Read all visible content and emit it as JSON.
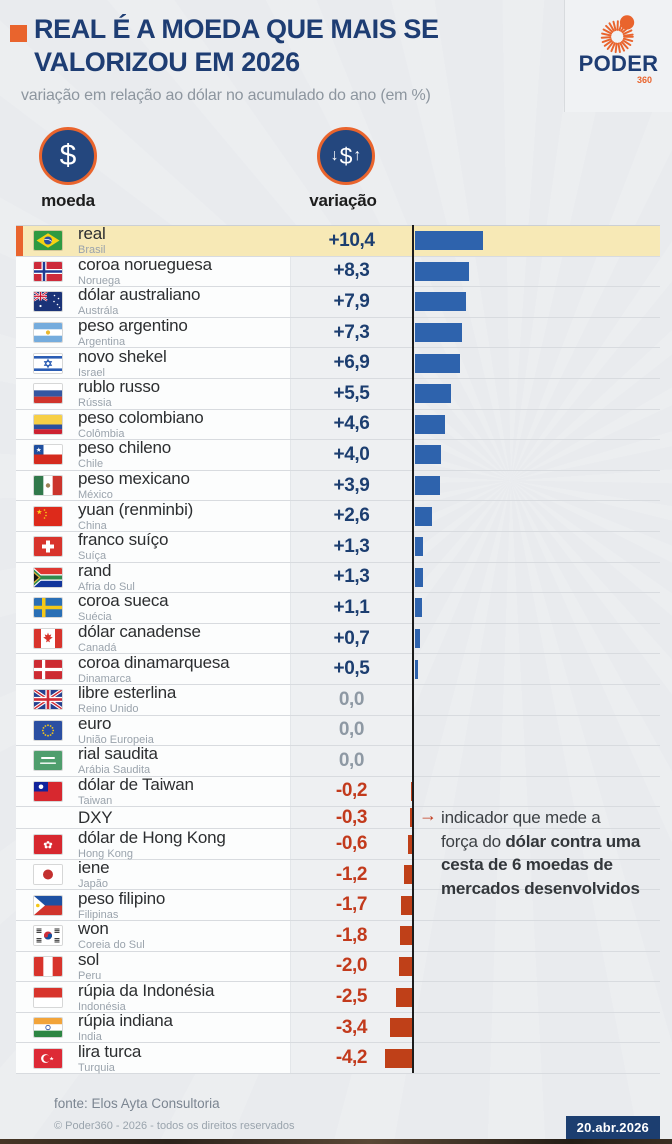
{
  "header": {
    "title_line1": "REAL É A MOEDA QUE MAIS SE",
    "title_line2": "VALORIZOU EM 2026",
    "subtitle": "variação em relação ao dólar no acumulado do ano (em %)",
    "logo_text": "PODER",
    "logo_sub": "360"
  },
  "columns": {
    "moeda_label": "moeda",
    "moeda_icon_glyph": "$",
    "variacao_label": "variação",
    "variacao_icon_down": "↓",
    "variacao_icon_dollar": "$",
    "variacao_icon_up": "↑"
  },
  "annotation": {
    "arrow_glyph": "→",
    "text_regular": "indicador que mede a força do ",
    "text_bold": "dólar contra uma cesta de 6 moedas de mercados desenvolvidos"
  },
  "footer": {
    "source": "fonte: Elos Ayta Consultoria",
    "copyright": "© Poder360 - 2026 - todos os direitos reservados",
    "date_badge": "20.abr.2026"
  },
  "colors": {
    "accent_orange": "#e9642d",
    "title_blue": "#1e3d73",
    "bar_positive": "#2e63ad",
    "bar_negative": "#bf4018",
    "value_positive": "#1c3e70",
    "value_zero": "#8e99a4",
    "value_negative": "#c23a1c",
    "highlight_row": "#f7e9b6",
    "date_badge_bg": "#1c3e70"
  },
  "chart_data": {
    "type": "bar",
    "orientation": "horizontal",
    "title": "REAL É A MOEDA QUE MAIS SE VALORIZOU EM 2026",
    "value_axis_note": "variação em relação ao dólar no acumulado do ano (em %)",
    "unit": "%",
    "xlim": [
      -4.2,
      10.4
    ],
    "rows": [
      {
        "currency": "real",
        "country": "Brasil",
        "label": "+10,4",
        "value": 10.4,
        "flag": "brazil",
        "highlight": true
      },
      {
        "currency": "coroa norueguesa",
        "country": "Noruega",
        "label": "+8,3",
        "value": 8.3,
        "flag": "norway",
        "highlight": false
      },
      {
        "currency": "dólar australiano",
        "country": "Austrála",
        "label": "+7,9",
        "value": 7.9,
        "flag": "australia",
        "highlight": false
      },
      {
        "currency": "peso argentino",
        "country": "Argentina",
        "label": "+7,3",
        "value": 7.3,
        "flag": "argentina",
        "highlight": false
      },
      {
        "currency": "novo shekel",
        "country": "Israel",
        "label": "+6,9",
        "value": 6.9,
        "flag": "israel",
        "highlight": false
      },
      {
        "currency": "rublo russo",
        "country": "Rússia",
        "label": "+5,5",
        "value": 5.5,
        "flag": "russia",
        "highlight": false
      },
      {
        "currency": "peso colombiano",
        "country": "Colômbia",
        "label": "+4,6",
        "value": 4.6,
        "flag": "colombia",
        "highlight": false
      },
      {
        "currency": "peso chileno",
        "country": "Chile",
        "label": "+4,0",
        "value": 4.0,
        "flag": "chile",
        "highlight": false
      },
      {
        "currency": "peso mexicano",
        "country": "México",
        "label": "+3,9",
        "value": 3.9,
        "flag": "mexico",
        "highlight": false
      },
      {
        "currency": "yuan (renminbi)",
        "country": "China",
        "label": "+2,6",
        "value": 2.6,
        "flag": "china",
        "highlight": false
      },
      {
        "currency": "franco suíço",
        "country": "Suíça",
        "label": "+1,3",
        "value": 1.3,
        "flag": "switzerland",
        "highlight": false
      },
      {
        "currency": "rand",
        "country": "Afria do Sul",
        "label": "+1,3",
        "value": 1.3,
        "flag": "south-africa",
        "highlight": false
      },
      {
        "currency": "coroa sueca",
        "country": "Suécia",
        "label": "+1,1",
        "value": 1.1,
        "flag": "sweden",
        "highlight": false
      },
      {
        "currency": "dólar canadense",
        "country": "Canadá",
        "label": "+0,7",
        "value": 0.7,
        "flag": "canada",
        "highlight": false
      },
      {
        "currency": "coroa dinamarquesa",
        "country": "Dinamarca",
        "label": "+0,5",
        "value": 0.5,
        "flag": "denmark",
        "highlight": false
      },
      {
        "currency": "libre esterlina",
        "country": "Reino Unido",
        "label": "0,0",
        "value": 0,
        "flag": "uk",
        "highlight": false
      },
      {
        "currency": "euro",
        "country": "União Europeia",
        "label": "0,0",
        "value": 0,
        "flag": "eu",
        "highlight": false
      },
      {
        "currency": "rial saudita",
        "country": "Arábia Saudita",
        "label": "0,0",
        "value": 0,
        "flag": "saudi-arabia",
        "highlight": false
      },
      {
        "currency": "dólar de Taiwan",
        "country": "Taiwan",
        "label": "-0,2",
        "value": -0.2,
        "flag": "taiwan",
        "highlight": false
      },
      {
        "currency": "DXY",
        "country": "",
        "label": "-0,3",
        "value": -0.3,
        "flag": "none",
        "highlight": false
      },
      {
        "currency": "dólar de Hong Kong",
        "country": "Hong Kong",
        "label": "-0,6",
        "value": -0.6,
        "flag": "hong-kong",
        "highlight": false
      },
      {
        "currency": "iene",
        "country": "Japão",
        "label": "-1,2",
        "value": -1.2,
        "flag": "japan",
        "highlight": false
      },
      {
        "currency": "peso filipino",
        "country": "Filipinas",
        "label": "-1,7",
        "value": -1.7,
        "flag": "philippines",
        "highlight": false
      },
      {
        "currency": "won",
        "country": "Coreia do Sul",
        "label": "-1,8",
        "value": -1.8,
        "flag": "south-korea",
        "highlight": false
      },
      {
        "currency": "sol",
        "country": "Peru",
        "label": "-2,0",
        "value": -2.0,
        "flag": "peru",
        "highlight": false
      },
      {
        "currency": "rúpia da Indonésia",
        "country": "Indonésia",
        "label": "-2,5",
        "value": -2.5,
        "flag": "indonesia",
        "highlight": false
      },
      {
        "currency": "rúpia indiana",
        "country": "India",
        "label": "-3,4",
        "value": -3.4,
        "flag": "india",
        "highlight": false
      },
      {
        "currency": "lira turca",
        "country": "Turquia",
        "label": "-4,2",
        "value": -4.2,
        "flag": "turkey",
        "highlight": false
      }
    ]
  }
}
